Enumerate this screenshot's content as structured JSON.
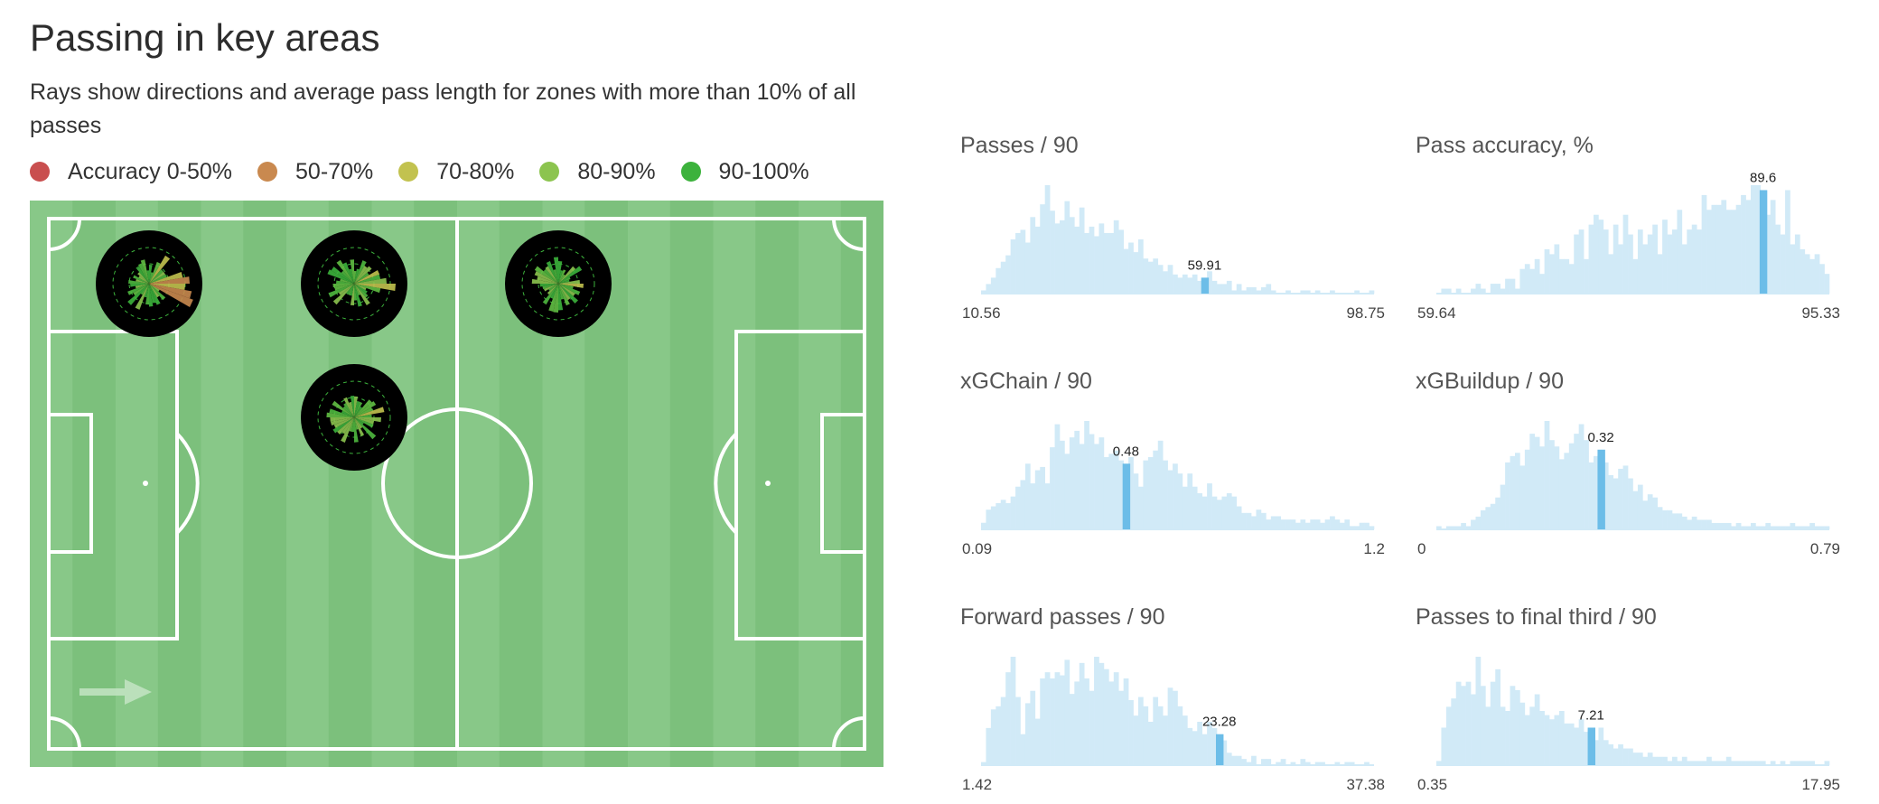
{
  "header": {
    "title": "Passing in key areas",
    "subtitle": "Rays show directions and average pass length for zones with more than 10% of all passes"
  },
  "legend": [
    {
      "label": "Accuracy 0-50%",
      "color": "#c94f4f"
    },
    {
      "label": "50-70%",
      "color": "#c9894f"
    },
    {
      "label": "70-80%",
      "color": "#c2c24f"
    },
    {
      "label": "80-90%",
      "color": "#8cc44f"
    },
    {
      "label": "90-100%",
      "color": "#3cb23c"
    }
  ],
  "colors": {
    "pitch_light": "#88c888",
    "pitch_dark": "#7cc07c",
    "hist_bar": "#d1eaf7",
    "hist_highlight": "#6cbde8"
  },
  "chart_data": [
    {
      "type": "bar",
      "title": "Passes / 90",
      "min_label": "10.56",
      "max_label": "98.75",
      "highlight_value": "59.91",
      "highlight_index": 45,
      "values": [
        1,
        3,
        5,
        8,
        10,
        12,
        17,
        19,
        20,
        16,
        24,
        21,
        28,
        34,
        26,
        22,
        23,
        29,
        24,
        21,
        27,
        19,
        21,
        18,
        22,
        19,
        19,
        23,
        20,
        14,
        16,
        13,
        17,
        11,
        10,
        11,
        9,
        7,
        9,
        6,
        5,
        6,
        5,
        6,
        4,
        5,
        7,
        4,
        3,
        3,
        4,
        1,
        3,
        1,
        2,
        2,
        1,
        2,
        3,
        1,
        0,
        0,
        1,
        0,
        0,
        1,
        1,
        0,
        1,
        0,
        0,
        1,
        0,
        0,
        0,
        0,
        1,
        0,
        0,
        1
      ]
    },
    {
      "type": "bar",
      "title": "Pass accuracy, %",
      "min_label": "59.64",
      "max_label": "95.33",
      "highlight_value": "89.6",
      "highlight_index": 66,
      "values": [
        0,
        1,
        1,
        0,
        1,
        0,
        0,
        1,
        2,
        1,
        0,
        2,
        2,
        1,
        3,
        3,
        1,
        5,
        6,
        5,
        7,
        4,
        9,
        8,
        10,
        7,
        7,
        6,
        12,
        13,
        7,
        14,
        16,
        15,
        13,
        8,
        14,
        10,
        16,
        12,
        7,
        13,
        10,
        12,
        14,
        8,
        15,
        12,
        13,
        17,
        10,
        13,
        14,
        13,
        20,
        17,
        18,
        18,
        19,
        17,
        17,
        18,
        20,
        19,
        22,
        22,
        21,
        16,
        19,
        14,
        12,
        21,
        10,
        12,
        9,
        8,
        7,
        8,
        6,
        4
      ]
    },
    {
      "type": "bar",
      "title": "xGChain / 90",
      "min_label": "0.09",
      "max_label": "1.2",
      "highlight_value": "0.48",
      "highlight_index": 29,
      "values": [
        2,
        6,
        7,
        8,
        9,
        8,
        10,
        13,
        15,
        20,
        14,
        18,
        19,
        14,
        25,
        32,
        27,
        23,
        28,
        30,
        26,
        33,
        29,
        26,
        28,
        22,
        23,
        24,
        21,
        20,
        22,
        17,
        13,
        21,
        22,
        24,
        27,
        21,
        18,
        20,
        17,
        13,
        17,
        13,
        11,
        10,
        14,
        10,
        9,
        10,
        11,
        10,
        7,
        5,
        5,
        4,
        6,
        5,
        3,
        4,
        4,
        3,
        3,
        3,
        2,
        3,
        2,
        3,
        3,
        2,
        3,
        4,
        3,
        2,
        3,
        1,
        1,
        2,
        2,
        1
      ]
    },
    {
      "type": "bar",
      "title": "xGBuildup / 90",
      "min_label": "0",
      "max_label": "0.79",
      "highlight_value": "0.32",
      "highlight_index": 33,
      "values": [
        1,
        0,
        1,
        1,
        1,
        2,
        1,
        3,
        4,
        6,
        7,
        8,
        10,
        14,
        21,
        23,
        24,
        20,
        25,
        30,
        29,
        26,
        34,
        28,
        26,
        22,
        24,
        27,
        30,
        33,
        28,
        21,
        23,
        25,
        21,
        17,
        16,
        19,
        20,
        16,
        12,
        14,
        9,
        11,
        10,
        7,
        6,
        6,
        5,
        5,
        4,
        3,
        4,
        3,
        3,
        3,
        2,
        2,
        2,
        2,
        1,
        2,
        1,
        1,
        2,
        1,
        1,
        2,
        1,
        1,
        1,
        1,
        2,
        1,
        1,
        1,
        2,
        1,
        1,
        1
      ]
    },
    {
      "type": "bar",
      "title": "Forward passes / 90",
      "min_label": "1.42",
      "max_label": "37.38",
      "highlight_value": "23.28",
      "highlight_index": 48,
      "values": [
        1,
        12,
        18,
        19,
        22,
        30,
        35,
        22,
        10,
        20,
        24,
        15,
        28,
        30,
        28,
        30,
        29,
        34,
        23,
        27,
        33,
        28,
        24,
        35,
        33,
        31,
        27,
        30,
        24,
        28,
        21,
        16,
        22,
        19,
        14,
        22,
        19,
        16,
        25,
        24,
        19,
        16,
        12,
        11,
        14,
        10,
        14,
        12,
        10,
        8,
        4,
        3,
        3,
        2,
        1,
        3,
        0,
        2,
        2,
        0,
        1,
        2,
        0,
        1,
        0,
        2,
        1,
        0,
        1,
        1,
        0,
        0,
        1,
        0,
        1,
        1,
        0,
        0,
        1,
        0
      ]
    },
    {
      "type": "bar",
      "title": "Passes to final third / 90",
      "min_label": "0.35",
      "max_label": "17.95",
      "highlight_value": "7.21",
      "highlight_index": 31,
      "values": [
        1,
        9,
        14,
        16,
        20,
        19,
        20,
        17,
        26,
        19,
        14,
        20,
        23,
        14,
        13,
        19,
        18,
        15,
        12,
        14,
        17,
        13,
        12,
        11,
        12,
        13,
        10,
        10,
        9,
        11,
        8,
        9,
        6,
        9,
        6,
        5,
        4,
        5,
        4,
        4,
        3,
        3,
        2,
        3,
        2,
        2,
        2,
        1,
        2,
        1,
        2,
        1,
        1,
        1,
        1,
        2,
        1,
        1,
        1,
        2,
        1,
        1,
        1,
        1,
        1,
        1,
        1,
        0,
        1,
        0,
        1,
        0,
        1,
        1,
        1,
        1,
        1,
        0,
        0,
        1
      ]
    }
  ]
}
